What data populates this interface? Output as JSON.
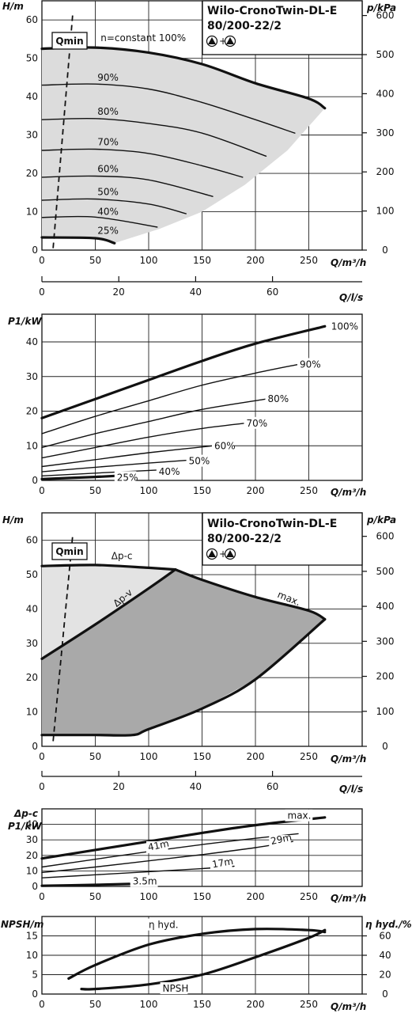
{
  "titlebox": {
    "line1": "Wilo-CronoTwin-DL-E",
    "line2": "80/200-22/2",
    "symbol": "▲+▲"
  },
  "chart_data": [
    {
      "type": "line",
      "title": "Wilo-CronoTwin-DL-E 80/200-22/2",
      "xlabel": "Q/m³/h",
      "ylabel": "H/m",
      "y2label": "p/kPa",
      "x2label": "Q/l/s",
      "xlim": [
        0,
        300
      ],
      "ylim": [
        0,
        65
      ],
      "xticks": [
        0,
        50,
        100,
        150,
        200,
        250
      ],
      "yticks": [
        0,
        10,
        20,
        30,
        40,
        50,
        60
      ],
      "y2ticks": [
        0,
        100,
        200,
        300,
        400,
        500,
        600
      ],
      "x2ticks": [
        0,
        20,
        40,
        60
      ],
      "qmin_label": "Qmin",
      "series": [
        {
          "name": "n=constant 100%",
          "x": [
            0,
            50,
            100,
            150,
            200,
            250,
            265
          ],
          "y": [
            52.5,
            52.8,
            51.5,
            48.5,
            43.5,
            39.5,
            37
          ]
        },
        {
          "name": "90%",
          "x": [
            0,
            50,
            100,
            150,
            200,
            237
          ],
          "y": [
            43,
            43.3,
            42,
            38.5,
            34,
            30.5
          ]
        },
        {
          "name": "80%",
          "x": [
            0,
            50,
            100,
            150,
            210
          ],
          "y": [
            34,
            34.3,
            33,
            30.5,
            24.5
          ]
        },
        {
          "name": "70%",
          "x": [
            0,
            50,
            100,
            150,
            188
          ],
          "y": [
            26,
            26.3,
            25.2,
            22,
            19
          ]
        },
        {
          "name": "60%",
          "x": [
            0,
            50,
            100,
            160
          ],
          "y": [
            19,
            19.3,
            18.3,
            14
          ]
        },
        {
          "name": "50%",
          "x": [
            0,
            50,
            100,
            135
          ],
          "y": [
            13,
            13.3,
            12,
            9.5
          ]
        },
        {
          "name": "40%",
          "x": [
            0,
            50,
            108
          ],
          "y": [
            8.5,
            8.6,
            6
          ]
        },
        {
          "name": "25%",
          "x": [
            0,
            50,
            68
          ],
          "y": [
            3.3,
            3.1,
            1.8
          ]
        }
      ]
    },
    {
      "type": "line",
      "xlabel": "Q/m³/h",
      "ylabel": "P1/kW",
      "xlim": [
        0,
        300
      ],
      "ylim": [
        0,
        48
      ],
      "xticks": [
        0,
        50,
        100,
        150,
        200,
        250
      ],
      "yticks": [
        0,
        10,
        20,
        30,
        40
      ],
      "series": [
        {
          "name": "100%",
          "x": [
            0,
            50,
            100,
            150,
            200,
            265
          ],
          "y": [
            18,
            23.5,
            29,
            34.5,
            39.5,
            44.5
          ]
        },
        {
          "name": "90%",
          "x": [
            0,
            50,
            100,
            150,
            200,
            240
          ],
          "y": [
            13.5,
            18.5,
            23,
            27.5,
            31,
            33.5
          ]
        },
        {
          "name": "80%",
          "x": [
            0,
            50,
            100,
            150,
            210
          ],
          "y": [
            9.5,
            13.5,
            17,
            20.5,
            23.5
          ]
        },
        {
          "name": "70%",
          "x": [
            0,
            50,
            100,
            150,
            190
          ],
          "y": [
            6.5,
            9.5,
            12.5,
            15,
            16.5
          ]
        },
        {
          "name": "60%",
          "x": [
            0,
            50,
            100,
            160
          ],
          "y": [
            4,
            6,
            8,
            10
          ]
        },
        {
          "name": "50%",
          "x": [
            0,
            50,
            100,
            136
          ],
          "y": [
            2.5,
            3.8,
            5,
            5.8
          ]
        },
        {
          "name": "40%",
          "x": [
            0,
            50,
            108
          ],
          "y": [
            1.3,
            2.1,
            3
          ]
        },
        {
          "name": "25%",
          "x": [
            0,
            50,
            68
          ],
          "y": [
            0.4,
            1,
            1.3
          ]
        }
      ]
    },
    {
      "type": "area",
      "title": "Wilo-CronoTwin-DL-E 80/200-22/2",
      "xlabel": "Q/m³/h",
      "ylabel": "H/m",
      "y2label": "p/kPa",
      "x2label": "Q/l/s",
      "xlim": [
        0,
        300
      ],
      "ylim": [
        0,
        68
      ],
      "xticks": [
        0,
        50,
        100,
        150,
        200,
        250
      ],
      "yticks": [
        0,
        10,
        20,
        30,
        40,
        50,
        60
      ],
      "y2ticks": [
        0,
        100,
        200,
        300,
        400,
        500,
        600
      ],
      "x2ticks": [
        0,
        20,
        40,
        60
      ],
      "qmin_label": "Qmin",
      "series": [
        {
          "name": "Δp-c",
          "x": [
            0,
            50,
            100,
            125
          ],
          "y": [
            52.5,
            52.8,
            52,
            51.5
          ]
        },
        {
          "name": "Δp-v",
          "x": [
            0,
            50,
            100,
            125
          ],
          "y": [
            25.5,
            35.5,
            46,
            51.5
          ]
        },
        {
          "name": "max.",
          "x": [
            125,
            150,
            200,
            250,
            265
          ],
          "y": [
            51.5,
            48.5,
            43.5,
            39.5,
            37
          ]
        },
        {
          "name": "",
          "x": [
            0,
            50,
            85,
            100,
            150,
            200,
            265
          ],
          "y": [
            3.3,
            3.3,
            3.3,
            5,
            11,
            19.5,
            37
          ]
        }
      ]
    },
    {
      "type": "line",
      "xlabel": "Q/m³/h",
      "ylabel": "P1/kW",
      "ylabel2": "Δp-c",
      "xlim": [
        0,
        300
      ],
      "ylim": [
        0,
        50
      ],
      "xticks": [
        0,
        50,
        100,
        150,
        200,
        250
      ],
      "yticks": [
        0,
        10,
        20,
        30,
        40
      ],
      "series": [
        {
          "name": "max.",
          "x": [
            0,
            50,
            100,
            150,
            200,
            265
          ],
          "y": [
            18,
            23.5,
            29,
            34.5,
            39.5,
            44.5
          ]
        },
        {
          "name": "41m",
          "x": [
            0,
            50,
            100,
            150,
            200,
            240
          ],
          "y": [
            12.5,
            17.5,
            22.5,
            27,
            31,
            34
          ]
        },
        {
          "name": "29m",
          "x": [
            0,
            50,
            100,
            150,
            200,
            235
          ],
          "y": [
            9,
            12.5,
            16.5,
            20.5,
            25,
            29
          ]
        },
        {
          "name": "17m",
          "x": [
            0,
            50,
            100,
            150,
            180
          ],
          "y": [
            5.5,
            7.5,
            9.5,
            11.5,
            13
          ]
        },
        {
          "name": "3.5m",
          "x": [
            0,
            50,
            82
          ],
          "y": [
            0.4,
            1,
            1.6
          ]
        }
      ]
    },
    {
      "type": "line",
      "xlabel": "Q/m³/h",
      "ylabel": "NPSH/m",
      "y2label": "η hyd./%",
      "xlim": [
        0,
        300
      ],
      "ylim": [
        0,
        20
      ],
      "xticks": [
        0,
        50,
        100,
        150,
        200,
        250
      ],
      "yticks": [
        0,
        5,
        10,
        15
      ],
      "y2ticks": [
        0,
        20,
        40,
        60
      ],
      "series": [
        {
          "name": "η hyd.",
          "axis": "right",
          "x": [
            25,
            50,
            100,
            150,
            200,
            250,
            265
          ],
          "y": [
            16,
            30,
            51,
            62,
            67,
            66,
            64
          ]
        },
        {
          "name": "NPSH",
          "axis": "left",
          "x": [
            37,
            50,
            100,
            150,
            200,
            250,
            265
          ],
          "y": [
            1.3,
            1.3,
            2.5,
            5,
            9.5,
            14.5,
            16.5
          ]
        }
      ]
    }
  ]
}
